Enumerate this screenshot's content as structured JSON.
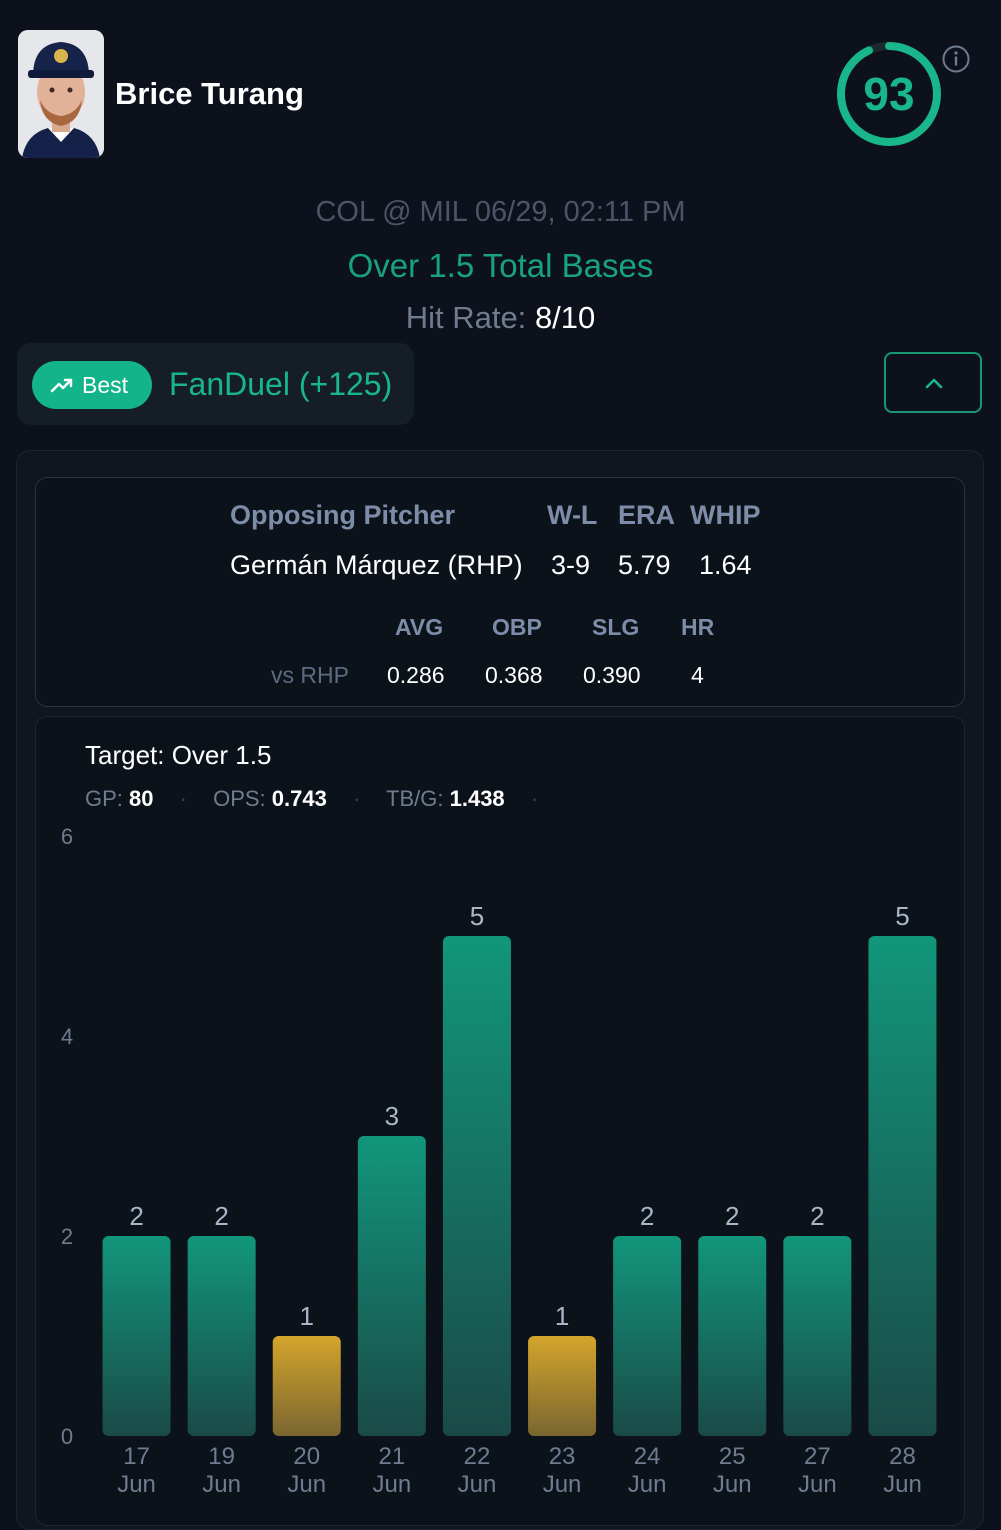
{
  "player": {
    "name": "Brice Turang",
    "score": "93",
    "avatar": "player-headshot"
  },
  "game": {
    "matchup": "COL @ MIL 06/29, 02:11 PM",
    "prop": "Over 1.5 Total Bases",
    "hit_rate_label": "Hit Rate:",
    "hit_rate_value": "8/10"
  },
  "odds": {
    "best_label": "Best",
    "book_odds": "FanDuel (+125)"
  },
  "pitcher": {
    "header_label": "Opposing Pitcher",
    "col_wl": "W-L",
    "col_era": "ERA",
    "col_whip": "WHIP",
    "name": "Germán Márquez (RHP)",
    "wl": "3-9",
    "era": "5.79",
    "whip": "1.64",
    "split_label": "vs RHP",
    "split_headers": [
      "AVG",
      "OBP",
      "SLG",
      "HR"
    ],
    "split_values": [
      "0.286",
      "0.368",
      "0.390",
      "4"
    ]
  },
  "summary": {
    "target": "Target: Over 1.5",
    "gp_label": "GP:",
    "gp_value": "80",
    "ops_label": "OPS:",
    "ops_value": "0.743",
    "tbg_label": "TB/G:",
    "tbg_value": "1.438"
  },
  "colors": {
    "accent": "#19b68a",
    "hit_bar": "#12967a",
    "miss_bar": "#d4a52c",
    "axis_text": "#6f7b8f"
  },
  "chart_data": {
    "type": "bar",
    "title": "",
    "xlabel": "",
    "ylabel": "",
    "categories": [
      "17 Jun",
      "19 Jun",
      "20 Jun",
      "21 Jun",
      "22 Jun",
      "23 Jun",
      "24 Jun",
      "25 Jun",
      "27 Jun",
      "28 Jun"
    ],
    "values": [
      2,
      2,
      1,
      3,
      5,
      1,
      2,
      2,
      2,
      5
    ],
    "ylim": [
      0,
      6
    ],
    "yticks": [
      0,
      2,
      4,
      6
    ],
    "threshold": 1.5,
    "grid": false,
    "legend": "none"
  }
}
